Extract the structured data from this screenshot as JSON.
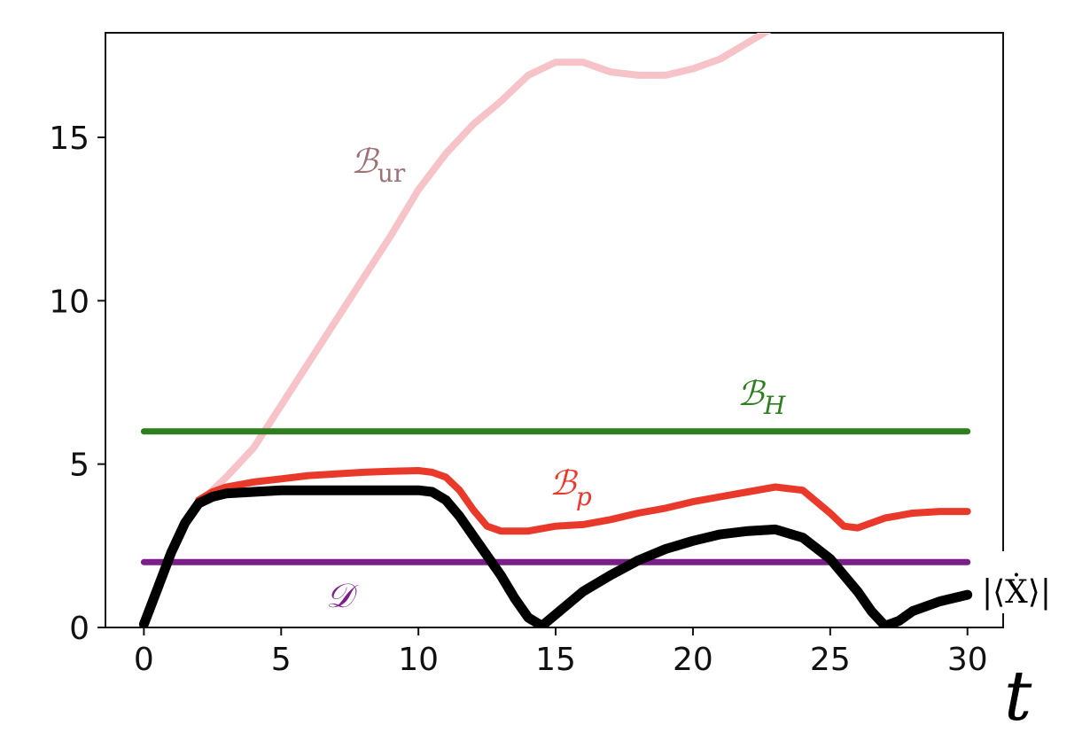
{
  "chart_data": {
    "type": "line",
    "xlabel": "t",
    "ylabel": "",
    "xlim": [
      -1.4,
      31.3
    ],
    "ylim": [
      0,
      18.2
    ],
    "xticks": [
      0,
      5,
      10,
      15,
      20,
      25,
      30
    ],
    "yticks": [
      0,
      5,
      10,
      15
    ],
    "xtick_labels": [
      "0",
      "5",
      "10",
      "15",
      "20",
      "25",
      "30"
    ],
    "ytick_labels": [
      "0",
      "5",
      "10",
      "15"
    ],
    "grid": false,
    "series": [
      {
        "key": "B_ur",
        "name": "ℬur",
        "label_main": "ℬ",
        "label_sub": "ur",
        "color": "#f6c3c8",
        "x": [
          0,
          0.5,
          1,
          1.5,
          2,
          3,
          4,
          5,
          6,
          7,
          8,
          9,
          10,
          11,
          12,
          13,
          14,
          15,
          16,
          17,
          18,
          19,
          20,
          21,
          22,
          23,
          23.5
        ],
        "y": [
          0.1,
          1.2,
          2.3,
          3.2,
          3.8,
          4.6,
          5.5,
          6.8,
          8.1,
          9.4,
          10.7,
          12.0,
          13.4,
          14.5,
          15.4,
          16.1,
          16.9,
          17.3,
          17.3,
          17.0,
          16.9,
          16.9,
          17.1,
          17.4,
          17.9,
          18.4,
          18.7
        ]
      },
      {
        "key": "B_H",
        "name": "ℬH",
        "label_main": "ℬ",
        "label_sub": "H",
        "color": "#2e7d1e",
        "x": [
          0,
          30
        ],
        "y": [
          6.0,
          6.0
        ]
      },
      {
        "key": "B_p",
        "name": "ℬp",
        "label_main": "ℬ",
        "label_sub": "p",
        "color": "#e8392a",
        "x": [
          2,
          2.5,
          3,
          4,
          5,
          6,
          7,
          8,
          9,
          10,
          10.5,
          11,
          11.5,
          12,
          12.5,
          13,
          14,
          15,
          16,
          17,
          18,
          19,
          20,
          21,
          22,
          23,
          24,
          25,
          25.5,
          26,
          27,
          28,
          29,
          30
        ],
        "y": [
          3.9,
          4.15,
          4.3,
          4.45,
          4.55,
          4.65,
          4.7,
          4.75,
          4.78,
          4.8,
          4.75,
          4.6,
          4.2,
          3.6,
          3.1,
          2.95,
          2.95,
          3.1,
          3.15,
          3.3,
          3.5,
          3.65,
          3.85,
          4.0,
          4.15,
          4.3,
          4.2,
          3.5,
          3.1,
          3.05,
          3.35,
          3.5,
          3.55,
          3.55
        ]
      },
      {
        "key": "D",
        "name": "𝒟",
        "label_main": "𝒟",
        "label_sub": "",
        "color": "#7a1f8a",
        "x": [
          0,
          30
        ],
        "y": [
          2.0,
          2.0
        ]
      },
      {
        "key": "X_dot",
        "name": "|⟨Ẋ⟩|",
        "label_main": "|⟨Ẋ⟩|",
        "label_sub": "",
        "color": "#000000",
        "x": [
          0,
          0.5,
          1,
          1.5,
          2,
          2.5,
          3,
          4,
          5,
          6,
          7,
          8,
          9,
          10,
          10.5,
          11,
          11.5,
          12,
          12.5,
          13,
          13.5,
          14,
          14.5,
          15,
          16,
          17,
          18,
          19,
          20,
          21,
          22,
          23,
          24,
          25,
          26,
          26.5,
          27,
          27.5,
          28,
          29,
          30
        ],
        "y": [
          0.1,
          1.2,
          2.3,
          3.2,
          3.8,
          4.0,
          4.1,
          4.15,
          4.2,
          4.2,
          4.2,
          4.2,
          4.2,
          4.2,
          4.15,
          3.9,
          3.4,
          2.8,
          2.2,
          1.6,
          0.9,
          0.3,
          0.05,
          0.4,
          1.1,
          1.6,
          2.05,
          2.4,
          2.65,
          2.85,
          2.95,
          3.0,
          2.75,
          2.1,
          1.1,
          0.5,
          0.05,
          0.2,
          0.5,
          0.8,
          1.0
        ]
      }
    ]
  }
}
